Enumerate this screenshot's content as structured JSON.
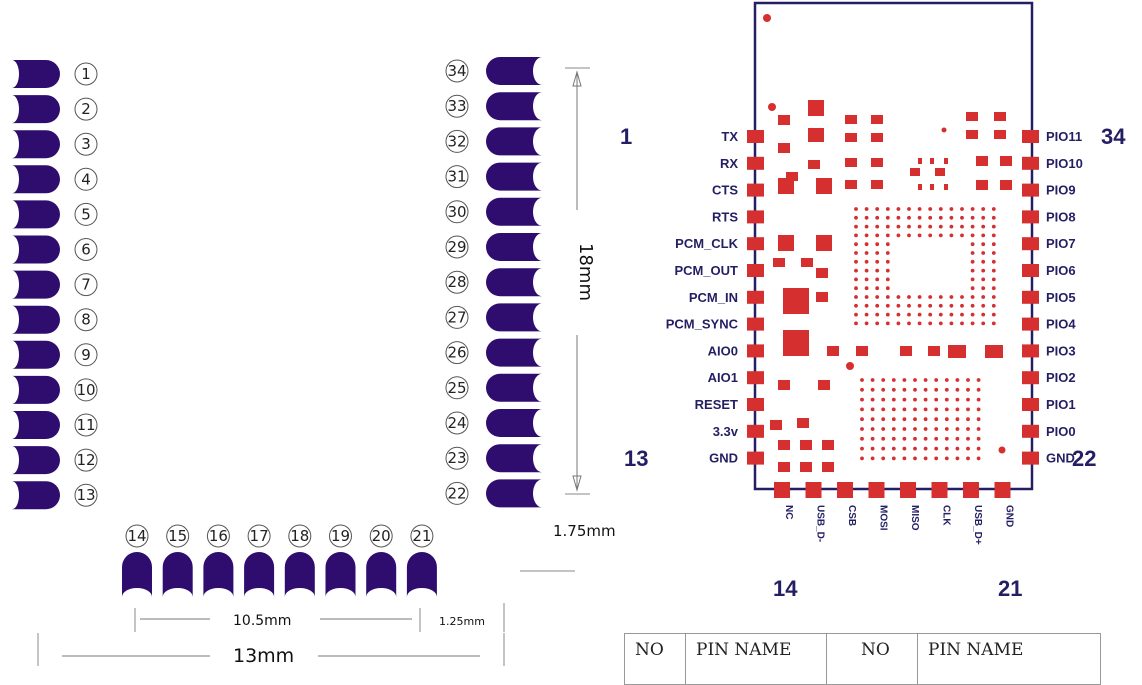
{
  "left_pins": [
    "1",
    "2",
    "3",
    "4",
    "5",
    "6",
    "7",
    "8",
    "9",
    "10",
    "11",
    "12",
    "13"
  ],
  "right_pins": [
    "34",
    "33",
    "32",
    "31",
    "30",
    "29",
    "28",
    "27",
    "26",
    "25",
    "24",
    "23",
    "22"
  ],
  "bottom_pins": [
    "14",
    "15",
    "16",
    "17",
    "18",
    "19",
    "20",
    "21"
  ],
  "dims": {
    "height": "18mm",
    "bottom_gap": "1.75mm",
    "pitch_span": "10.5mm",
    "edge": "1.25mm",
    "width": "13mm"
  },
  "left_signals": [
    "TX",
    "RX",
    "CTS",
    "RTS",
    "PCM_CLK",
    "PCM_OUT",
    "PCM_IN",
    "PCM_SYNC",
    "AIO0",
    "AIO1",
    "RESET",
    "3.3v",
    "GND"
  ],
  "right_signals": [
    "PIO11",
    "PIO10",
    "PIO9",
    "PIO8",
    "PIO7",
    "PIO6",
    "PIO5",
    "PIO4",
    "PIO3",
    "PIO2",
    "PIO1",
    "PIO0",
    "GND"
  ],
  "bottom_signals": [
    "NC",
    "USB_D-",
    "CSB",
    "MOSI",
    "MISO",
    "CLK",
    "USB_D+",
    "GND"
  ],
  "corner_labels": {
    "pin1": "1",
    "pin13": "13",
    "pin14": "14",
    "pin21": "21",
    "pin22": "22",
    "pin34": "34"
  },
  "table_header": [
    "NO",
    "PIN NAME",
    "NO",
    "PIN NAME"
  ],
  "colors": {
    "pad": "#2e0d6e",
    "copper": "#d62f2f",
    "outline": "#241f63"
  }
}
